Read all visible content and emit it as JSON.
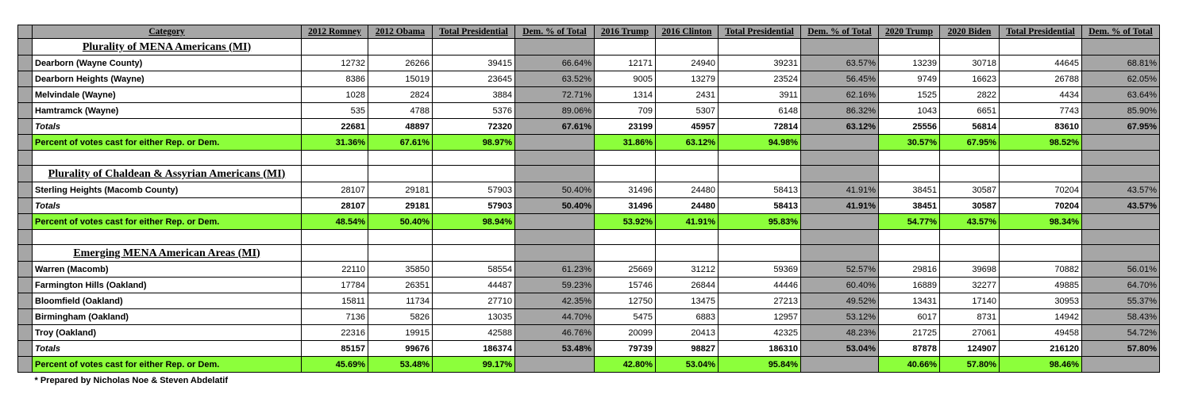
{
  "headers": [
    "Category",
    "2012 Romney",
    "2012 Obama",
    "Total Presidential",
    "Dem. % of Total",
    "2016 Trump",
    "2016 Clinton",
    "Total Presidential",
    "Dem. % of Total",
    "2020 Trump",
    "2020 Biden",
    "Total Presidential",
    "Dem. % of Total"
  ],
  "sections": [
    {
      "title": "Plurality of MENA Americans (MI)",
      "rows": [
        {
          "label": "Dearborn (Wayne County)",
          "values": [
            "12732",
            "26266",
            "39415",
            "66.64%",
            "12171",
            "24940",
            "39231",
            "63.57%",
            "13239",
            "30718",
            "44645",
            "68.81%"
          ]
        },
        {
          "label": "Dearborn Heights (Wayne)",
          "values": [
            "8386",
            "15019",
            "23645",
            "63.52%",
            "9005",
            "13279",
            "23524",
            "56.45%",
            "9749",
            "16623",
            "26788",
            "62.05%"
          ]
        },
        {
          "label": "Melvindale (Wayne)",
          "values": [
            "1028",
            "2824",
            "3884",
            "72.71%",
            "1314",
            "2431",
            "3911",
            "62.16%",
            "1525",
            "2822",
            "4434",
            "63.64%"
          ]
        },
        {
          "label": "Hamtramck (Wayne)",
          "values": [
            "535",
            "4788",
            "5376",
            "89.06%",
            "709",
            "5307",
            "6148",
            "86.32%",
            "1043",
            "6651",
            "7743",
            "85.90%"
          ]
        }
      ],
      "totals": {
        "label": "Totals",
        "values": [
          "22681",
          "48897",
          "72320",
          "67.61%",
          "23199",
          "45957",
          "72814",
          "63.12%",
          "25556",
          "56814",
          "83610",
          "67.95%"
        ]
      },
      "percent": {
        "label": "Percent of votes cast for either Rep. or Dem.",
        "values": [
          "31.36%",
          "67.61%",
          "98.97%",
          "",
          "31.86%",
          "63.12%",
          "94.98%",
          "",
          "30.57%",
          "67.95%",
          "98.52%",
          ""
        ]
      }
    },
    {
      "title": "Plurality of Chaldean & Assyrian Americans (MI)",
      "rows": [
        {
          "label": "Sterling Heights (Macomb County)",
          "values": [
            "28107",
            "29181",
            "57903",
            "50.40%",
            "31496",
            "24480",
            "58413",
            "41.91%",
            "38451",
            "30587",
            "70204",
            "43.57%"
          ]
        }
      ],
      "totals": {
        "label": "Totals",
        "values": [
          "28107",
          "29181",
          "57903",
          "50.40%",
          "31496",
          "24480",
          "58413",
          "41.91%",
          "38451",
          "30587",
          "70204",
          "43.57%"
        ]
      },
      "percent": {
        "label": "Percent of votes cast for either Rep. or Dem.",
        "values": [
          "48.54%",
          "50.40%",
          "98.94%",
          "",
          "53.92%",
          "41.91%",
          "95.83%",
          "",
          "54.77%",
          "43.57%",
          "98.34%",
          ""
        ]
      }
    },
    {
      "title": "Emerging MENA American Areas (MI)",
      "rows": [
        {
          "label": "Warren (Macomb)",
          "values": [
            "22110",
            "35850",
            "58554",
            "61.23%",
            "25669",
            "31212",
            "59369",
            "52.57%",
            "29816",
            "39698",
            "70882",
            "56.01%"
          ]
        },
        {
          "label": "Farmington Hills (Oakland)",
          "values": [
            "17784",
            "26351",
            "44487",
            "59.23%",
            "15746",
            "26844",
            "44446",
            "60.40%",
            "16889",
            "32277",
            "49885",
            "64.70%"
          ]
        },
        {
          "label": "Bloomfield (Oakland)",
          "values": [
            "15811",
            "11734",
            "27710",
            "42.35%",
            "12750",
            "13475",
            "27213",
            "49.52%",
            "13431",
            "17140",
            "30953",
            "55.37%"
          ]
        },
        {
          "label": "Birmingham (Oakland)",
          "values": [
            "7136",
            "5826",
            "13035",
            "44.70%",
            "5475",
            "6883",
            "12957",
            "53.12%",
            "6017",
            "8731",
            "14942",
            "58.43%"
          ]
        },
        {
          "label": "Troy (Oakland)",
          "values": [
            "22316",
            "19915",
            "42588",
            "46.76%",
            "20099",
            "20413",
            "42325",
            "48.23%",
            "21725",
            "27061",
            "49458",
            "54.72%"
          ]
        }
      ],
      "totals": {
        "label": "Totals",
        "values": [
          "85157",
          "99676",
          "186374",
          "53.48%",
          "79739",
          "98827",
          "186310",
          "53.04%",
          "87878",
          "124907",
          "216120",
          "57.80%"
        ]
      },
      "percent": {
        "label": "Percent of votes cast for either Rep. or Dem.",
        "values": [
          "45.69%",
          "53.48%",
          "99.17%",
          "",
          "42.80%",
          "53.04%",
          "95.84%",
          "",
          "40.66%",
          "57.80%",
          "98.46%",
          ""
        ]
      }
    }
  ],
  "footnote": "* Prepared by Nicholas Noe & Steven Abdelatif",
  "colors": {
    "header_gray": "#a6a6a6",
    "highlight_green": "#8cff3b"
  }
}
